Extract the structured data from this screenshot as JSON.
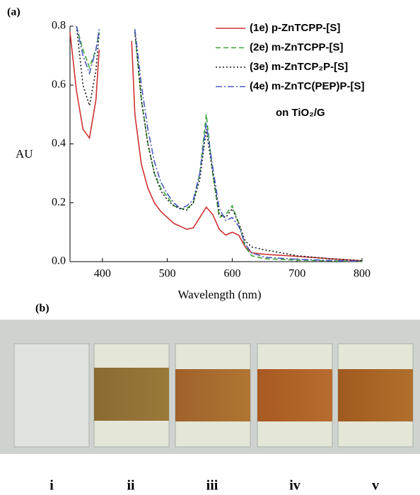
{
  "panel_labels": [
    "(a)",
    "(b)"
  ],
  "chart_data": {
    "type": "line",
    "xlabel": "Wavelength (nm)",
    "ylabel": "AU",
    "annotation": "on TiO₂/G",
    "xlim": [
      350,
      800
    ],
    "xticks": [
      400,
      500,
      600,
      700,
      800
    ],
    "ylim": [
      0,
      0.8
    ],
    "yticks": [
      {
        "value": 0,
        "label": "0.0"
      },
      0.2,
      0.4,
      0.6,
      0.8
    ],
    "legend": "upper right",
    "x": [
      350,
      360,
      370,
      380,
      390,
      395,
      420,
      445,
      450,
      460,
      470,
      480,
      490,
      500,
      510,
      520,
      530,
      540,
      550,
      560,
      570,
      580,
      590,
      600,
      610,
      620,
      630,
      650,
      700,
      750,
      800
    ],
    "series": [
      {
        "name": "(1e) p-ZnTCPP-[S]",
        "color": "#d03030",
        "linestyle": "solid",
        "values": [
          0.78,
          0.58,
          0.45,
          0.42,
          0.55,
          0.72,
          null,
          0.75,
          0.5,
          0.33,
          0.25,
          0.2,
          0.17,
          0.15,
          0.13,
          0.12,
          0.11,
          0.115,
          0.15,
          0.185,
          0.16,
          0.11,
          0.09,
          0.1,
          0.09,
          0.05,
          0.03,
          0.025,
          0.018,
          0.01,
          0.003
        ]
      },
      {
        "name": "(2e) m-ZnTCPP-[S]",
        "color": "#3aa53a",
        "linestyle": "dashed",
        "values": [
          null,
          0.8,
          0.72,
          0.66,
          0.72,
          0.78,
          null,
          null,
          0.78,
          0.55,
          0.4,
          0.3,
          0.25,
          0.22,
          0.19,
          0.18,
          0.18,
          0.2,
          0.3,
          0.5,
          0.3,
          0.15,
          0.16,
          0.19,
          0.13,
          0.05,
          0.02,
          0.01,
          0.005,
          0.003,
          0.001
        ]
      },
      {
        "name": "(3e) m-ZnTCP₂P-[S]",
        "color": "#111111",
        "linestyle": "dotted",
        "values": [
          null,
          0.8,
          0.6,
          0.53,
          0.65,
          0.78,
          null,
          null,
          0.78,
          0.55,
          0.4,
          0.3,
          0.24,
          0.21,
          0.19,
          0.18,
          0.175,
          0.2,
          0.28,
          0.45,
          0.3,
          0.16,
          0.15,
          0.18,
          0.13,
          0.07,
          0.05,
          0.04,
          0.02,
          0.01,
          0.003
        ]
      },
      {
        "name": "(4e) m-ZnTC(PEP)P-[S]",
        "color": "#4a5ac0",
        "linestyle": "dashdot",
        "values": [
          null,
          0.8,
          0.7,
          0.64,
          0.72,
          0.79,
          null,
          null,
          0.79,
          0.6,
          0.45,
          0.34,
          0.27,
          0.23,
          0.2,
          0.18,
          0.19,
          0.21,
          0.3,
          0.47,
          0.32,
          0.18,
          0.14,
          0.15,
          0.12,
          0.06,
          0.03,
          0.015,
          0.008,
          0.004,
          0.001
        ]
      }
    ]
  },
  "photo_labels": [
    "i",
    "ii",
    "iii",
    "iv",
    "v"
  ]
}
